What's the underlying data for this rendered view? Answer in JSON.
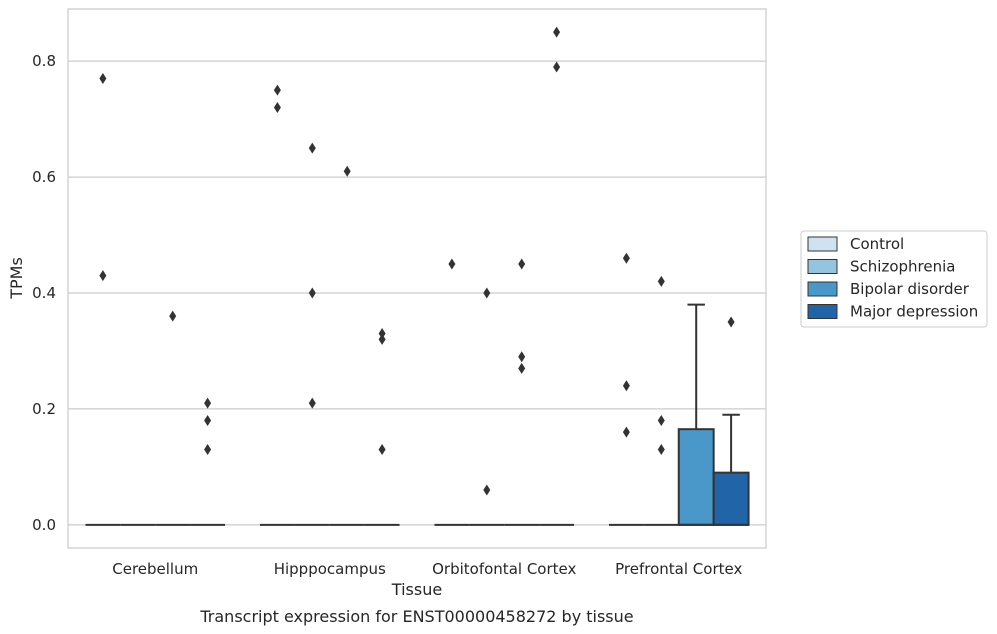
{
  "chart_data": {
    "type": "box",
    "xlabel": "Tissue",
    "ylabel": "TPMs",
    "caption": "Transcript expression for ENST00000458272 by tissue",
    "categories": [
      "Cerebellum",
      "Hipppocampus",
      "Orbitofontal Cortex",
      "Prefrontal Cortex"
    ],
    "ylim": [
      -0.04,
      0.89
    ],
    "yticks": [
      0.0,
      0.2,
      0.4,
      0.6,
      0.8
    ],
    "ytick_labels": [
      "0.0",
      "0.2",
      "0.4",
      "0.6",
      "0.8"
    ],
    "grid": "horizontal",
    "legend": {
      "placement": "right",
      "entries": [
        "Control",
        "Schizophrenia",
        "Bipolar disorder",
        "Major depression"
      ]
    },
    "colors": {
      "Control": "#d0e1f2",
      "Schizophrenia": "#94c4df",
      "Bipolar disorder": "#4a98c9",
      "Major depression": "#2264a8",
      "outline": "#333333",
      "grid": "#cccccc",
      "frame": "#cccccc"
    },
    "series": [
      {
        "name": "Control",
        "boxes": [
          {
            "category": "Cerebellum",
            "q1": 0,
            "median": 0,
            "q3": 0,
            "whisker_low": 0,
            "whisker_high": 0,
            "outliers": [
              0.77,
              0.43
            ]
          },
          {
            "category": "Hipppocampus",
            "q1": 0,
            "median": 0,
            "q3": 0,
            "whisker_low": 0,
            "whisker_high": 0,
            "outliers": [
              0.75,
              0.72
            ]
          },
          {
            "category": "Orbitofontal Cortex",
            "q1": 0,
            "median": 0,
            "q3": 0,
            "whisker_low": 0,
            "whisker_high": 0,
            "outliers": [
              0.45
            ]
          },
          {
            "category": "Prefrontal Cortex",
            "q1": 0,
            "median": 0,
            "q3": 0,
            "whisker_low": 0,
            "whisker_high": 0,
            "outliers": [
              0.46,
              0.24,
              0.16
            ]
          }
        ]
      },
      {
        "name": "Schizophrenia",
        "boxes": [
          {
            "category": "Cerebellum",
            "q1": 0,
            "median": 0,
            "q3": 0,
            "whisker_low": 0,
            "whisker_high": 0,
            "outliers": []
          },
          {
            "category": "Hipppocampus",
            "q1": 0,
            "median": 0,
            "q3": 0,
            "whisker_low": 0,
            "whisker_high": 0,
            "outliers": [
              0.65,
              0.4,
              0.21
            ]
          },
          {
            "category": "Orbitofontal Cortex",
            "q1": 0,
            "median": 0,
            "q3": 0,
            "whisker_low": 0,
            "whisker_high": 0,
            "outliers": [
              0.4,
              0.06
            ]
          },
          {
            "category": "Prefrontal Cortex",
            "q1": 0,
            "median": 0,
            "q3": 0,
            "whisker_low": 0,
            "whisker_high": 0,
            "outliers": [
              0.42,
              0.18,
              0.13
            ]
          }
        ]
      },
      {
        "name": "Bipolar disorder",
        "boxes": [
          {
            "category": "Cerebellum",
            "q1": 0,
            "median": 0,
            "q3": 0,
            "whisker_low": 0,
            "whisker_high": 0,
            "outliers": [
              0.36
            ]
          },
          {
            "category": "Hipppocampus",
            "q1": 0,
            "median": 0,
            "q3": 0,
            "whisker_low": 0,
            "whisker_high": 0,
            "outliers": [
              0.61
            ]
          },
          {
            "category": "Orbitofontal Cortex",
            "q1": 0,
            "median": 0,
            "q3": 0,
            "whisker_low": 0,
            "whisker_high": 0,
            "outliers": [
              0.45,
              0.29,
              0.27
            ]
          },
          {
            "category": "Prefrontal Cortex",
            "q1": 0,
            "median": 0,
            "q3": 0.165,
            "whisker_low": 0,
            "whisker_high": 0.38,
            "outliers": []
          }
        ]
      },
      {
        "name": "Major depression",
        "boxes": [
          {
            "category": "Cerebellum",
            "q1": 0,
            "median": 0,
            "q3": 0,
            "whisker_low": 0,
            "whisker_high": 0,
            "outliers": [
              0.21,
              0.18,
              0.13
            ]
          },
          {
            "category": "Hipppocampus",
            "q1": 0,
            "median": 0,
            "q3": 0,
            "whisker_low": 0,
            "whisker_high": 0,
            "outliers": [
              0.33,
              0.32,
              0.13
            ]
          },
          {
            "category": "Orbitofontal Cortex",
            "q1": 0,
            "median": 0,
            "q3": 0,
            "whisker_low": 0,
            "whisker_high": 0,
            "outliers": [
              0.85,
              0.79
            ]
          },
          {
            "category": "Prefrontal Cortex",
            "q1": 0,
            "median": 0,
            "q3": 0.09,
            "whisker_low": 0,
            "whisker_high": 0.19,
            "outliers": [
              0.35
            ]
          }
        ]
      }
    ]
  }
}
